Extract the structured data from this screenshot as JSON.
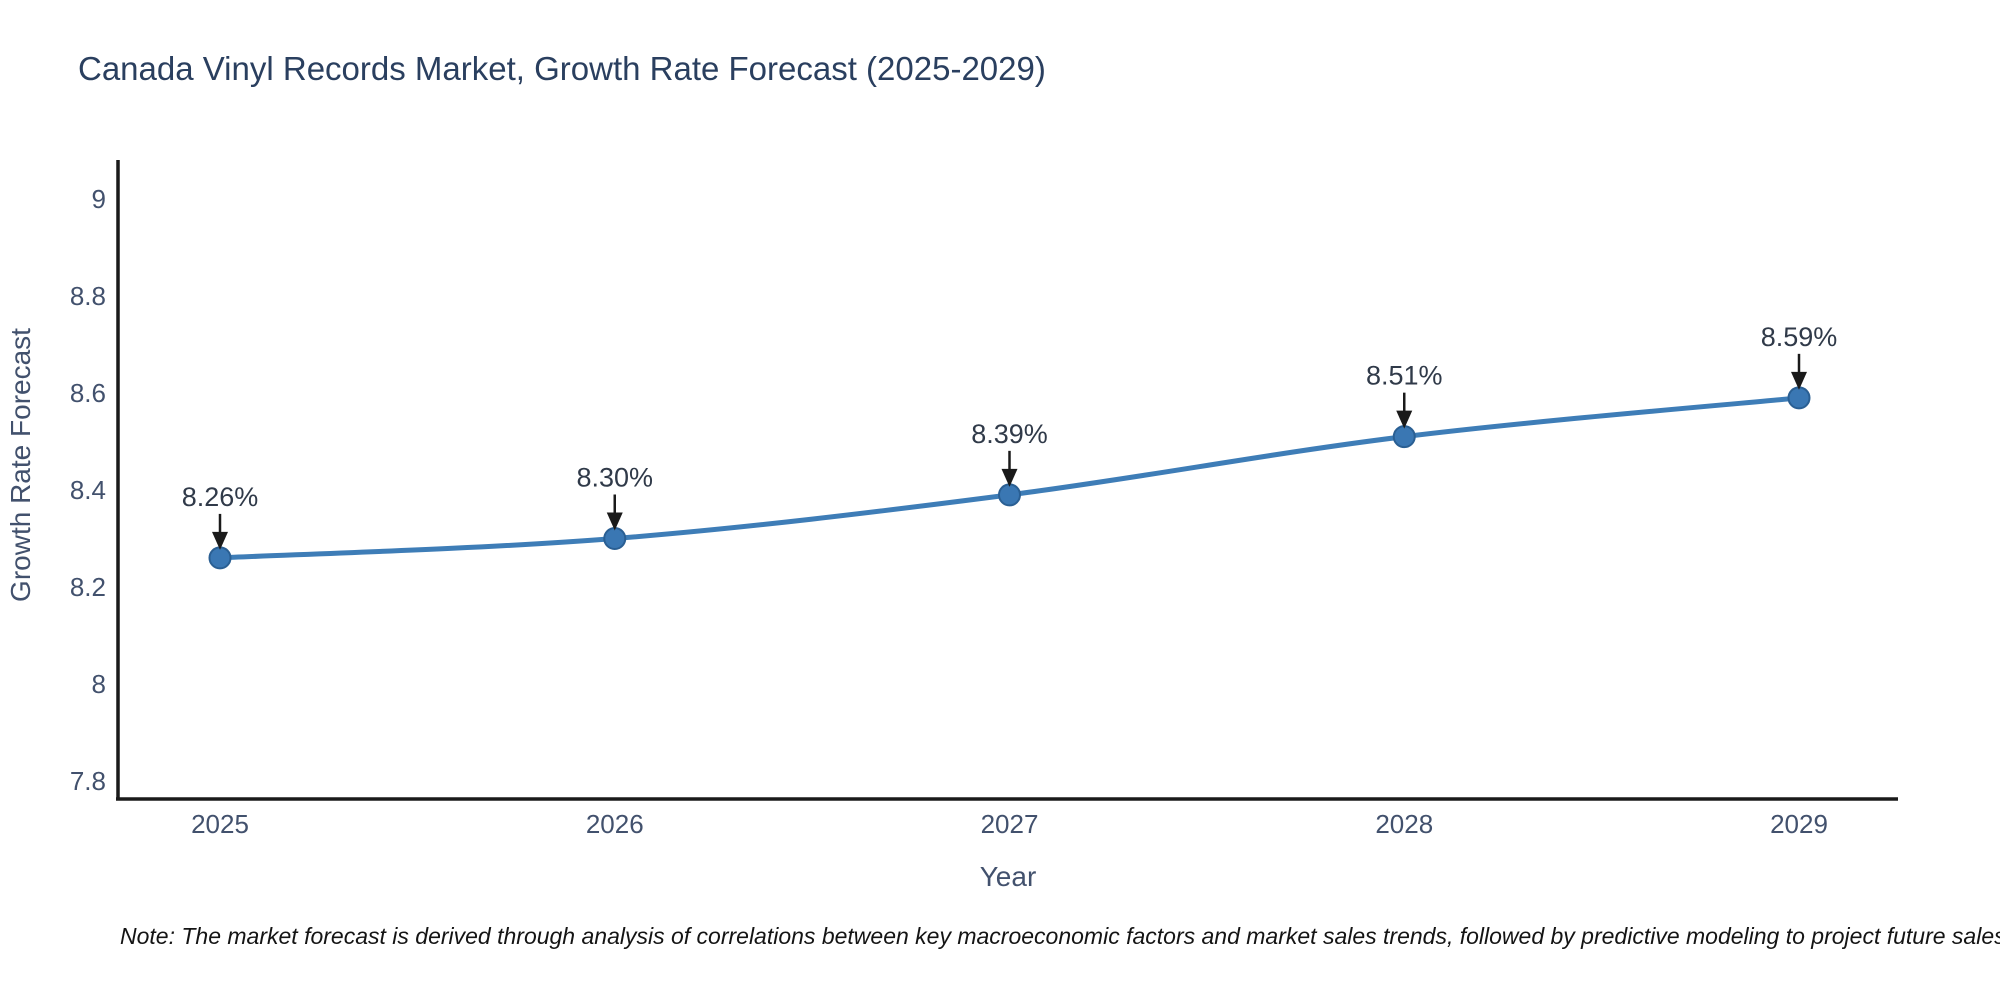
{
  "title": "Canada Vinyl Records Market, Growth Rate Forecast (2025-2029)",
  "note": "Note: The market forecast is derived through analysis of correlations between key macroeconomic factors and market sales trends, followed by predictive modeling to project future sales",
  "chart_data": {
    "type": "line",
    "title": "Canada Vinyl Records Market, Growth Rate Forecast (2025-2029)",
    "xlabel": "Year",
    "ylabel": "Growth Rate Forecast",
    "categories": [
      "2025",
      "2026",
      "2027",
      "2028",
      "2029"
    ],
    "values": [
      8.26,
      8.3,
      8.39,
      8.51,
      8.59
    ],
    "point_labels": [
      "8.26%",
      "8.30%",
      "8.39%",
      "8.51%",
      "8.59%"
    ],
    "yticks": [
      "7.8",
      "8",
      "8.2",
      "8.4",
      "8.6",
      "8.8",
      "9"
    ],
    "ylim": [
      7.76,
      9.08
    ],
    "grid": false,
    "legend": "none",
    "annotation_style": "down-arrow",
    "colors": {
      "line": "#3e7db7",
      "marker_fill": "#3a77b3",
      "marker_edge": "#2a5f93",
      "axis": "#1a1a1a",
      "arrow": "#1a1a1a",
      "title_text": "#2a3f5f",
      "tick_text": "#42516d"
    }
  }
}
